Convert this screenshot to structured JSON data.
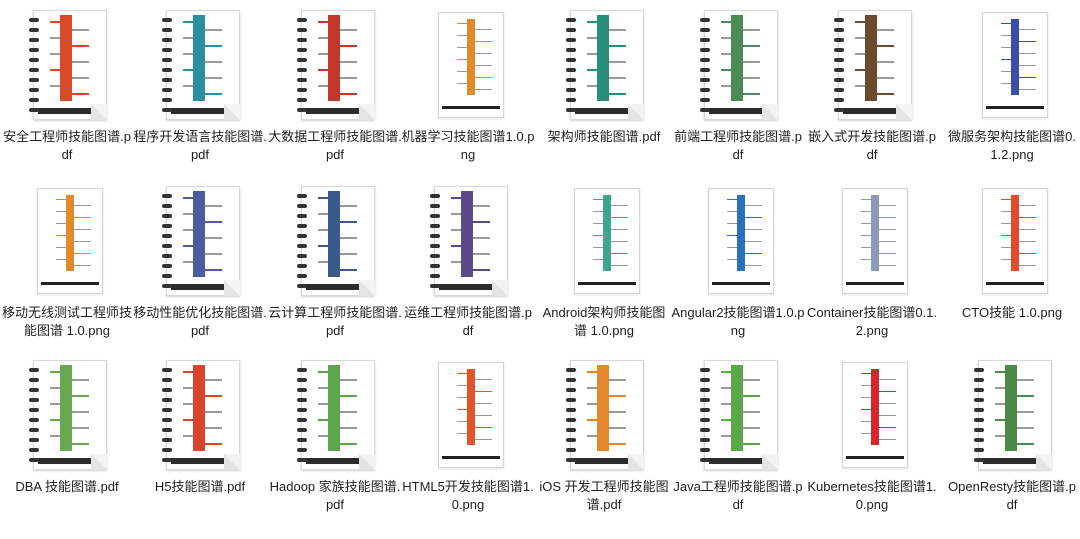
{
  "files": [
    {
      "name": "安全工程师技能图谱.pdf",
      "kind": "pdf",
      "color": "#d94a2a"
    },
    {
      "name": "程序开发语言技能图谱.pdf",
      "kind": "pdf",
      "color": "#2a8fa0"
    },
    {
      "name": "大数据工程师技能图谱.pdf",
      "kind": "pdf",
      "color": "#c0392b"
    },
    {
      "name": "机器学习技能图谱1.0.png",
      "kind": "png",
      "color": "#e28a2b"
    },
    {
      "name": "架构师技能图谱.pdf",
      "kind": "pdf",
      "color": "#2a8f7a"
    },
    {
      "name": "前端工程师技能图谱.pdf",
      "kind": "pdf",
      "color": "#4e8a55"
    },
    {
      "name": "嵌入式开发技能图谱.pdf",
      "kind": "pdf",
      "color": "#6b4a2e"
    },
    {
      "name": "微服务架构技能图谱0.1.2.png",
      "kind": "png",
      "color": "#3a4ea8"
    },
    {
      "name": "移动无线测试工程师技能图谱 1.0.png",
      "kind": "png",
      "color": "#e28a2b"
    },
    {
      "name": "移动性能优化技能图谱.pdf",
      "kind": "pdf",
      "color": "#4a5ba0"
    },
    {
      "name": "云计算工程师技能图谱.pdf",
      "kind": "pdf",
      "color": "#3a5a8a"
    },
    {
      "name": "运维工程师技能图谱.pdf",
      "kind": "pdf",
      "color": "#5a4a8a"
    },
    {
      "name": "Android架构师技能图谱 1.0.png",
      "kind": "png",
      "color": "#3aa88a"
    },
    {
      "name": "Angular2技能图谱1.0.png",
      "kind": "png",
      "color": "#2a6fc0"
    },
    {
      "name": "Container技能图谱0.1.2.png",
      "kind": "png",
      "color": "#8a9ab8"
    },
    {
      "name": "CTO技能 1.0.png",
      "kind": "png",
      "color": "#e24a2a"
    },
    {
      "name": "DBA 技能图谱.pdf",
      "kind": "pdf",
      "color": "#6aa84f"
    },
    {
      "name": "H5技能图谱.pdf",
      "kind": "pdf",
      "color": "#d9452a"
    },
    {
      "name": "Hadoop 家族技能图谱.pdf",
      "kind": "pdf",
      "color": "#5aa84a"
    },
    {
      "name": "HTML5开发技能图谱1.0.png",
      "kind": "png",
      "color": "#e2542a"
    },
    {
      "name": "iOS 开发工程师技能图谱.pdf",
      "kind": "pdf",
      "color": "#e28a2b"
    },
    {
      "name": "Java工程师技能图谱.pdf",
      "kind": "pdf",
      "color": "#5aa84a"
    },
    {
      "name": "Kubernetes技能图谱1.0.png",
      "kind": "png",
      "color": "#d9252a"
    },
    {
      "name": "OpenResty技能图谱.pdf",
      "kind": "pdf",
      "color": "#4a8a4a"
    }
  ]
}
